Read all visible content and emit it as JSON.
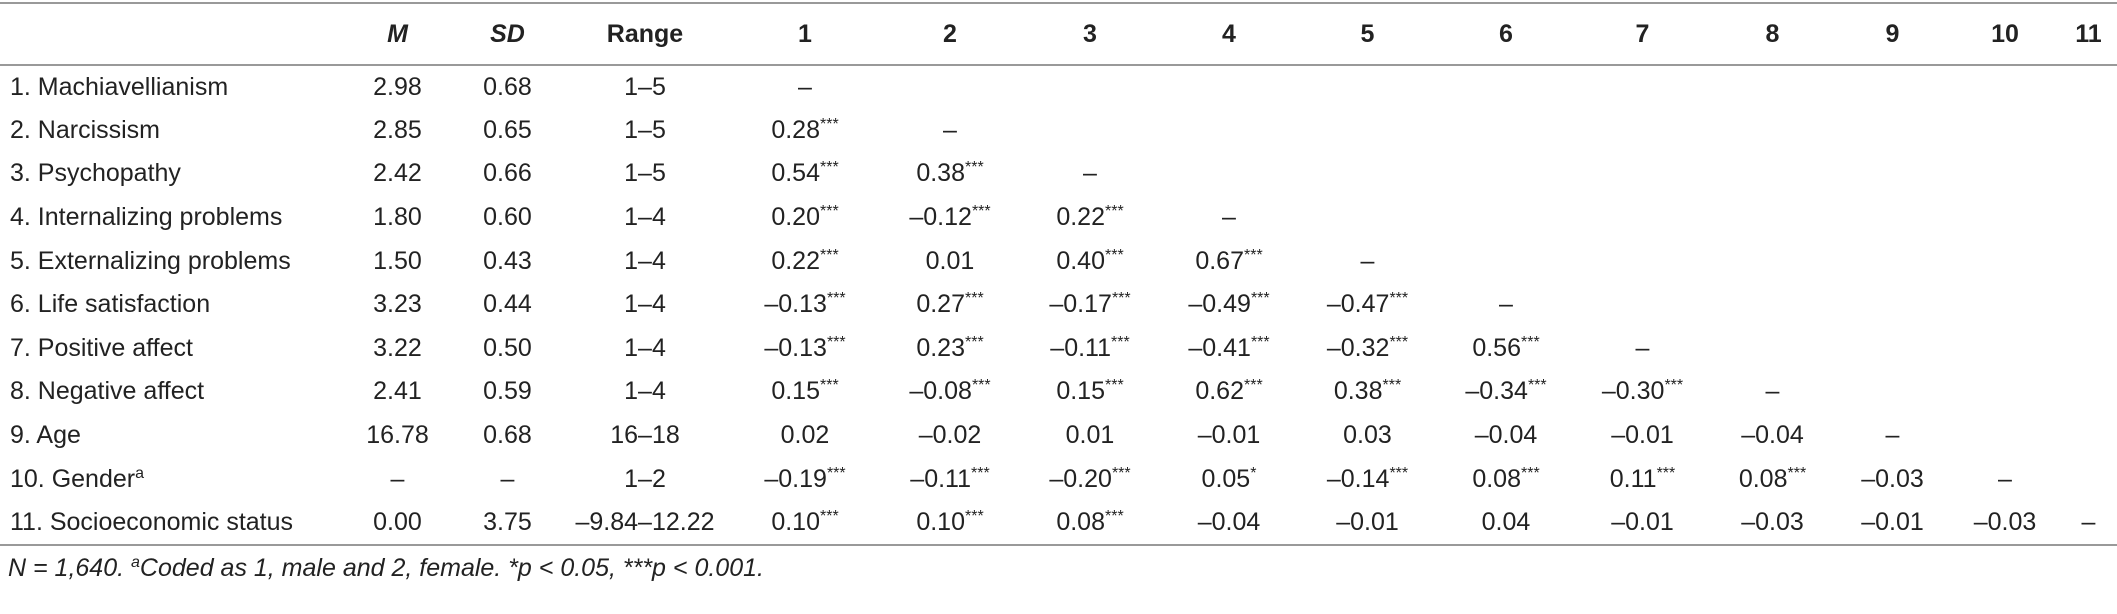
{
  "table": {
    "header": [
      "M",
      "SD",
      "Range",
      "1",
      "2",
      "3",
      "4",
      "5",
      "6",
      "7",
      "8",
      "9",
      "10",
      "11"
    ],
    "rows": [
      {
        "label": "1. Machiavellianism",
        "cells": [
          "2.98",
          "0.68",
          "1–5",
          "–"
        ]
      },
      {
        "label": "2. Narcissism",
        "cells": [
          "2.85",
          "0.65",
          "1–5",
          {
            "text": "0.28",
            "sup": "***"
          },
          "–"
        ]
      },
      {
        "label": "3. Psychopathy",
        "cells": [
          "2.42",
          "0.66",
          "1–5",
          {
            "text": "0.54",
            "sup": "***"
          },
          {
            "text": "0.38",
            "sup": "***"
          },
          "–"
        ]
      },
      {
        "label": "4. Internalizing problems",
        "cells": [
          "1.80",
          "0.60",
          "1–4",
          {
            "text": "0.20",
            "sup": "***"
          },
          {
            "text": "–0.12",
            "sup": "***"
          },
          {
            "text": "0.22",
            "sup": "***"
          },
          "–"
        ]
      },
      {
        "label": "5. Externalizing problems",
        "cells": [
          "1.50",
          "0.43",
          "1–4",
          {
            "text": "0.22",
            "sup": "***"
          },
          "0.01",
          {
            "text": "0.40",
            "sup": "***"
          },
          {
            "text": "0.67",
            "sup": "***"
          },
          "–"
        ]
      },
      {
        "label": "6. Life satisfaction",
        "cells": [
          "3.23",
          "0.44",
          "1–4",
          {
            "text": "–0.13",
            "sup": "***"
          },
          {
            "text": "0.27",
            "sup": "***"
          },
          {
            "text": "–0.17",
            "sup": "***"
          },
          {
            "text": "–0.49",
            "sup": "***"
          },
          {
            "text": "–0.47",
            "sup": "***"
          },
          "–"
        ]
      },
      {
        "label": "7. Positive affect",
        "cells": [
          "3.22",
          "0.50",
          "1–4",
          {
            "text": "–0.13",
            "sup": "***"
          },
          {
            "text": "0.23",
            "sup": "***"
          },
          {
            "text": "–0.11",
            "sup": "***"
          },
          {
            "text": "–0.41",
            "sup": "***"
          },
          {
            "text": "–0.32",
            "sup": "***"
          },
          {
            "text": "0.56",
            "sup": "***"
          },
          "–"
        ]
      },
      {
        "label": "8. Negative affect",
        "cells": [
          "2.41",
          "0.59",
          "1–4",
          {
            "text": "0.15",
            "sup": "***"
          },
          {
            "text": "–0.08",
            "sup": "***"
          },
          {
            "text": "0.15",
            "sup": "***"
          },
          {
            "text": "0.62",
            "sup": "***"
          },
          {
            "text": "0.38",
            "sup": "***"
          },
          {
            "text": "–0.34",
            "sup": "***"
          },
          {
            "text": "–0.30",
            "sup": "***"
          },
          "–"
        ]
      },
      {
        "label": "9. Age",
        "cells": [
          "16.78",
          "0.68",
          "16–18",
          "0.02",
          "–0.02",
          "0.01",
          "–0.01",
          "0.03",
          "–0.04",
          "–0.01",
          "–0.04",
          "–"
        ]
      },
      {
        "label": "10. Gender",
        "label_sup": "a",
        "cells": [
          "–",
          "–",
          "1–2",
          {
            "text": "–0.19",
            "sup": "***"
          },
          {
            "text": "–0.11",
            "sup": "***"
          },
          {
            "text": "–0.20",
            "sup": "***"
          },
          {
            "text": "0.05",
            "sup": "*"
          },
          {
            "text": "–0.14",
            "sup": "***"
          },
          {
            "text": "0.08",
            "sup": "***"
          },
          {
            "text": "0.11",
            "sup": "***"
          },
          {
            "text": "0.08",
            "sup": "***"
          },
          "–0.03",
          "–"
        ]
      },
      {
        "label": "11. Socioeconomic status",
        "cells": [
          "0.00",
          "3.75",
          "–9.84–12.22",
          {
            "text": "0.10",
            "sup": "***"
          },
          {
            "text": "0.10",
            "sup": "***"
          },
          {
            "text": "0.08",
            "sup": "***"
          },
          "–0.04",
          "–0.01",
          "0.04",
          "–0.01",
          "–0.03",
          "–0.01",
          "–0.03",
          "–"
        ]
      }
    ]
  },
  "footnote": {
    "lead": "N = 1,640.",
    "sup": "a",
    "text": "Coded as 1, male and 2, female. *p < 0.05, ***p < 0.001."
  }
}
